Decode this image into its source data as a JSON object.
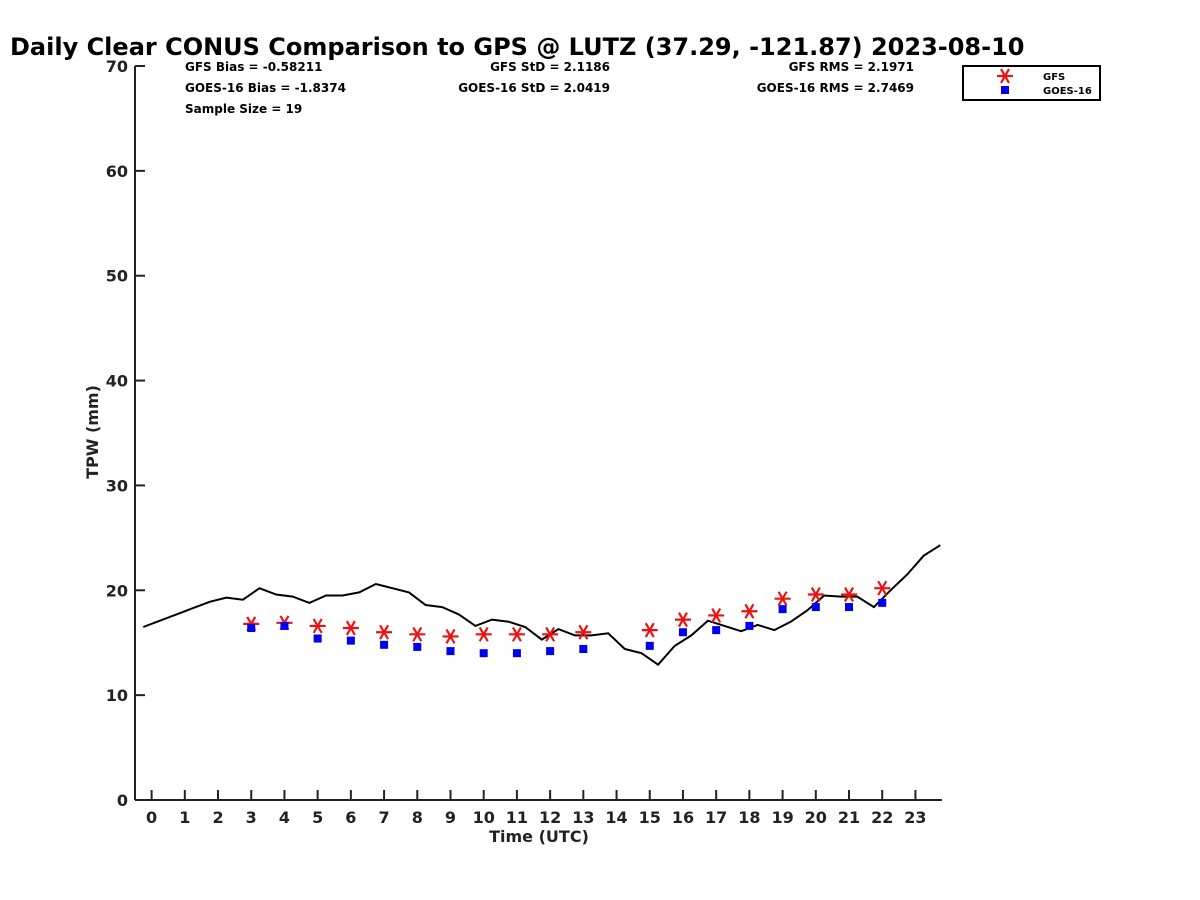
{
  "chart_data": {
    "type": "line",
    "title": "Daily Clear CONUS Comparison to GPS @ LUTZ (37.29, -121.87) 2023-08-10",
    "xlabel": "Time (UTC)",
    "ylabel": "TPW (mm)",
    "xlim": [
      -0.5,
      23.8
    ],
    "ylim": [
      0,
      70
    ],
    "x_ticks": [
      0,
      1,
      2,
      3,
      4,
      5,
      6,
      7,
      8,
      9,
      10,
      11,
      12,
      13,
      14,
      15,
      16,
      17,
      18,
      19,
      20,
      21,
      22,
      23
    ],
    "y_ticks": [
      0,
      10,
      20,
      30,
      40,
      50,
      60,
      70
    ],
    "grid": false,
    "legend_position": "top-right",
    "stats": [
      {
        "text": "GFS Bias = -0.58211"
      },
      {
        "text": "GFS StD = 2.1186"
      },
      {
        "text": "GFS RMS = 2.1971"
      },
      {
        "text": "GOES-16 Bias = -1.8374"
      },
      {
        "text": "GOES-16 StD = 2.0419"
      },
      {
        "text": "GOES-16 RMS = 2.7469"
      },
      {
        "text": "Sample Size = 19"
      }
    ],
    "series": [
      {
        "name": "",
        "kind": "line",
        "color": "#000000",
        "points": [
          [
            -0.25,
            16.5
          ],
          [
            0.25,
            17.1
          ],
          [
            0.75,
            17.7
          ],
          [
            1.25,
            18.3
          ],
          [
            1.75,
            18.9
          ],
          [
            2.25,
            19.3
          ],
          [
            2.75,
            19.1
          ],
          [
            3.25,
            20.2
          ],
          [
            3.75,
            19.6
          ],
          [
            4.25,
            19.4
          ],
          [
            4.75,
            18.8
          ],
          [
            5.25,
            19.5
          ],
          [
            5.75,
            19.5
          ],
          [
            6.25,
            19.8
          ],
          [
            6.75,
            20.6
          ],
          [
            7.25,
            20.2
          ],
          [
            7.75,
            19.8
          ],
          [
            8.25,
            18.6
          ],
          [
            8.75,
            18.4
          ],
          [
            9.25,
            17.7
          ],
          [
            9.75,
            16.6
          ],
          [
            10.25,
            17.2
          ],
          [
            10.75,
            17.0
          ],
          [
            11.25,
            16.5
          ],
          [
            11.75,
            15.3
          ],
          [
            12.25,
            16.3
          ],
          [
            12.75,
            15.7
          ],
          [
            13.25,
            15.7
          ],
          [
            13.75,
            15.9
          ],
          [
            14.25,
            14.4
          ],
          [
            14.75,
            14.0
          ],
          [
            15.25,
            12.9
          ],
          [
            15.75,
            14.7
          ],
          [
            16.25,
            15.7
          ],
          [
            16.75,
            17.1
          ],
          [
            17.25,
            16.6
          ],
          [
            17.75,
            16.1
          ],
          [
            18.25,
            16.7
          ],
          [
            18.75,
            16.2
          ],
          [
            19.25,
            17.0
          ],
          [
            19.75,
            18.1
          ],
          [
            20.25,
            19.5
          ],
          [
            20.75,
            19.4
          ],
          [
            21.25,
            19.4
          ],
          [
            21.75,
            18.4
          ],
          [
            22.25,
            20.0
          ],
          [
            22.75,
            21.5
          ],
          [
            23.25,
            23.3
          ],
          [
            23.75,
            24.3
          ]
        ]
      },
      {
        "name": "GFS",
        "kind": "scatter",
        "marker": "asterisk",
        "color": "#ee1111",
        "x": [
          3,
          4,
          5,
          6,
          7,
          8,
          9,
          10,
          11,
          12,
          13,
          15,
          16,
          17,
          18,
          19,
          20,
          21,
          22
        ],
        "values": [
          16.8,
          16.9,
          16.6,
          16.4,
          16.0,
          15.8,
          15.6,
          15.8,
          15.8,
          15.8,
          16.0,
          16.2,
          17.2,
          17.6,
          18.0,
          19.2,
          19.6,
          19.6,
          20.2
        ]
      },
      {
        "name": "GOES-16",
        "kind": "scatter",
        "marker": "square",
        "color": "#0000ee",
        "x": [
          3,
          4,
          5,
          6,
          7,
          8,
          9,
          10,
          11,
          12,
          13,
          15,
          16,
          17,
          18,
          19,
          20,
          21,
          22
        ],
        "values": [
          16.4,
          16.6,
          15.4,
          15.2,
          14.8,
          14.6,
          14.2,
          14.0,
          14.0,
          14.2,
          14.4,
          14.7,
          16.0,
          16.2,
          16.6,
          18.2,
          18.4,
          18.4,
          18.8
        ]
      }
    ]
  }
}
